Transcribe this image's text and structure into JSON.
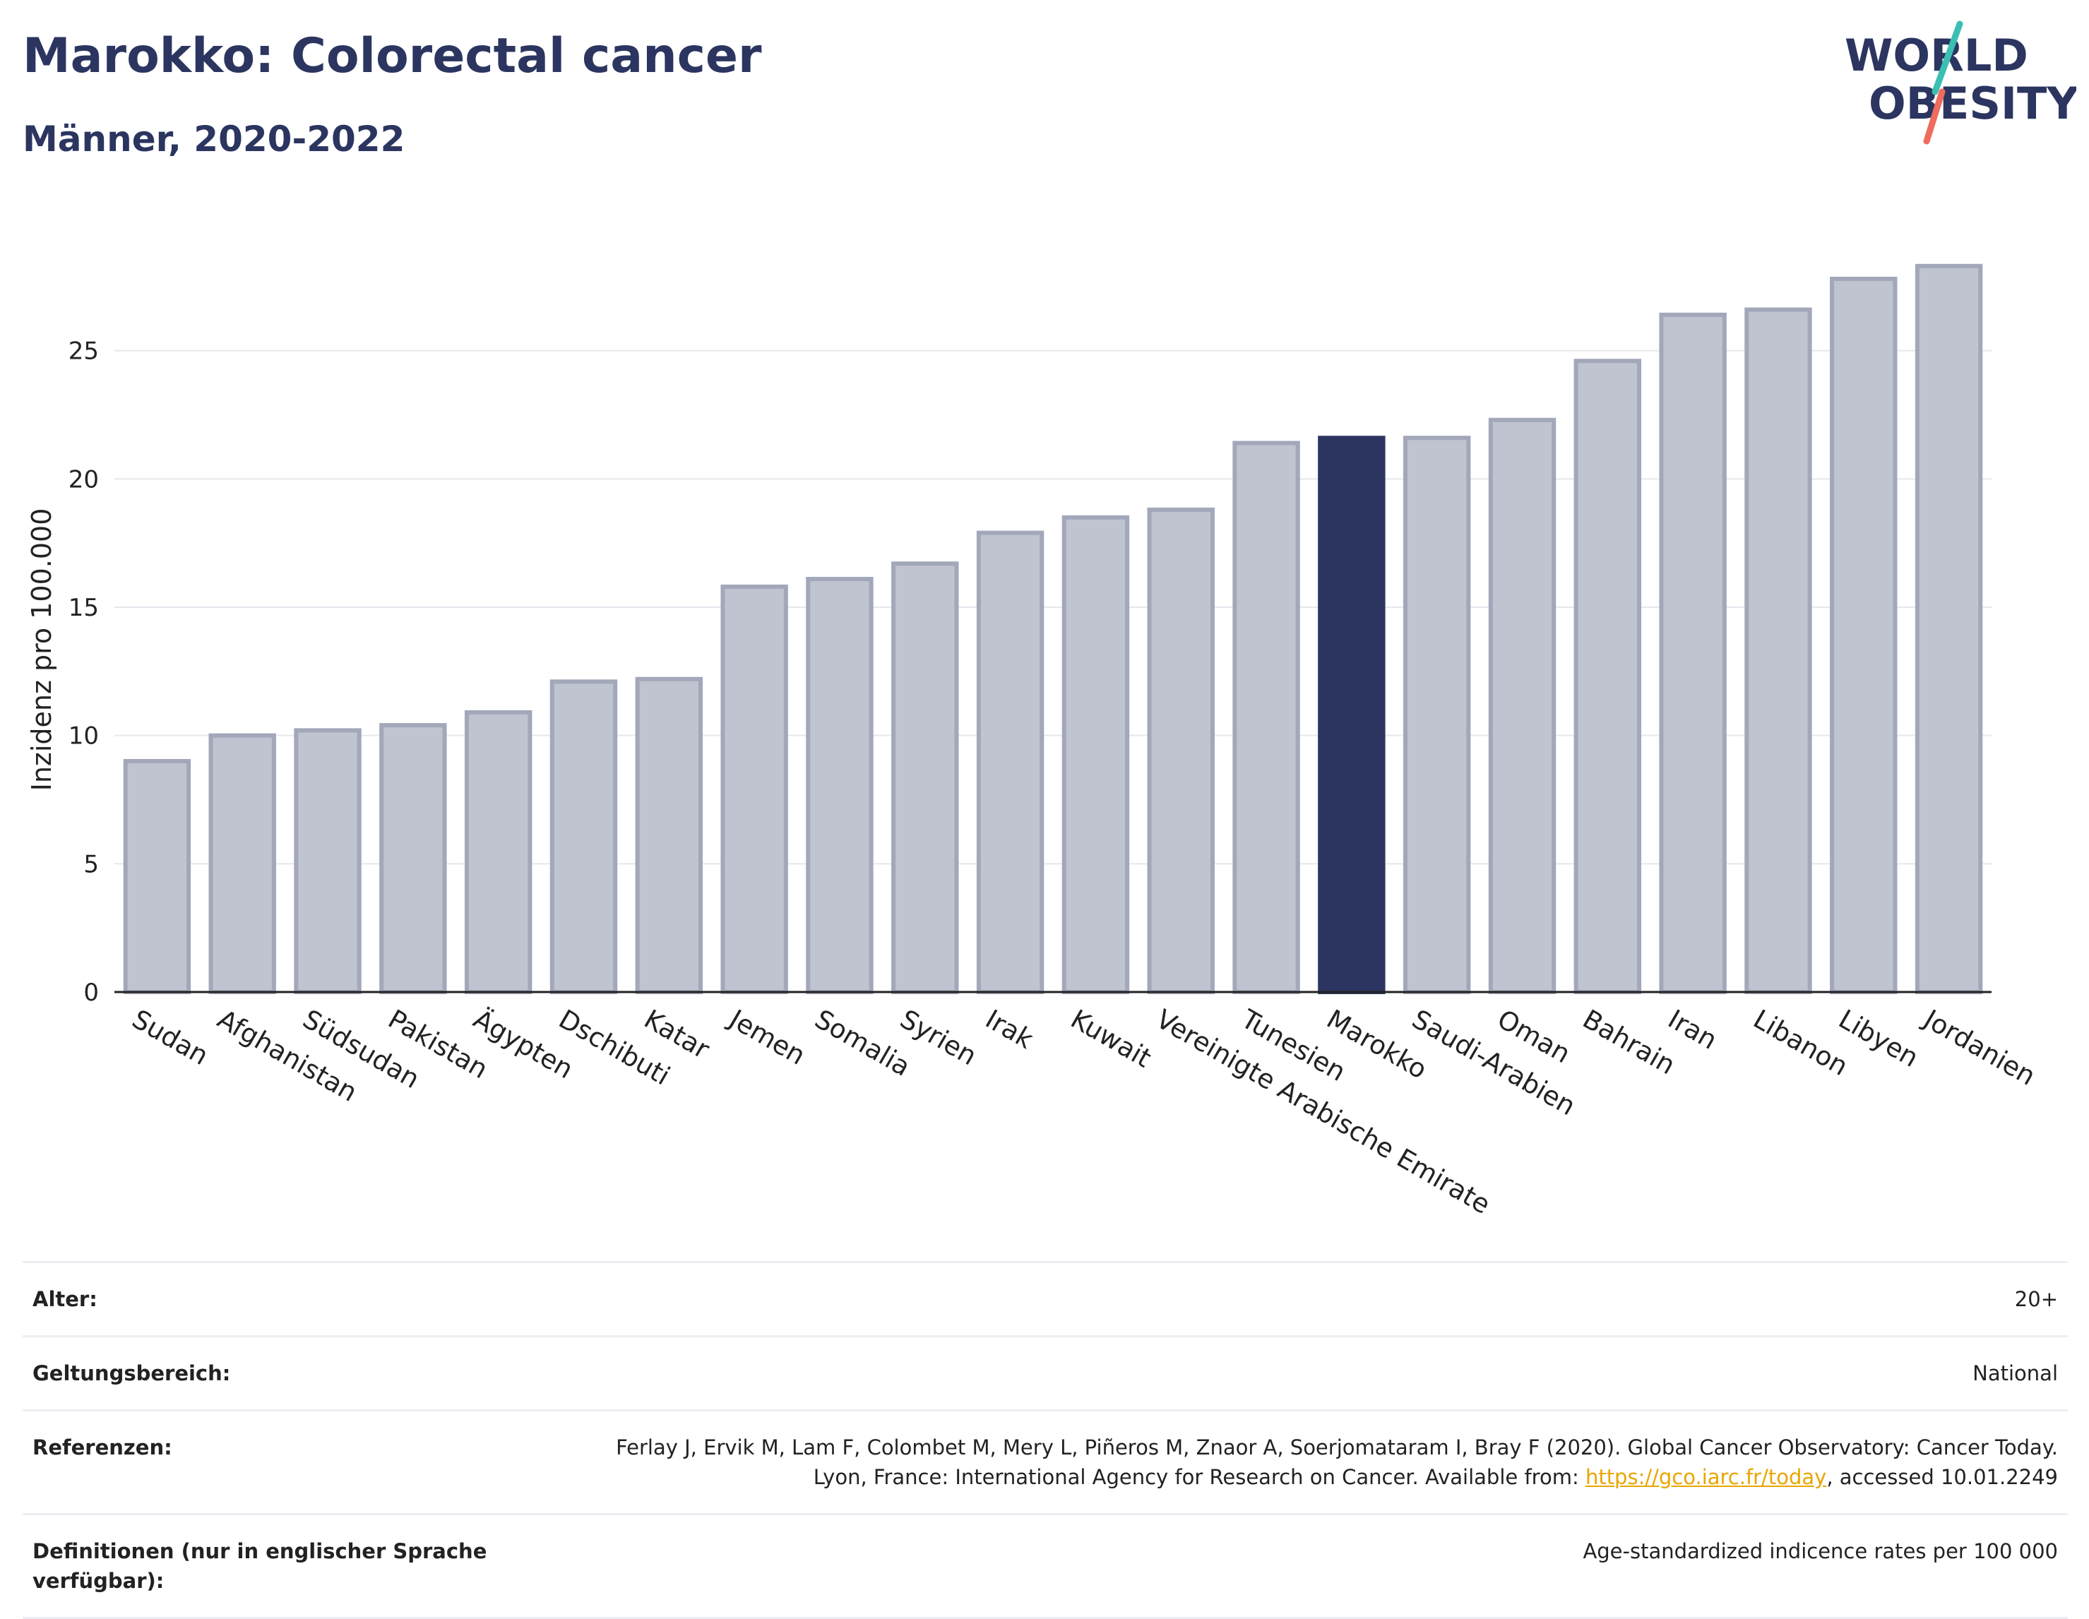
{
  "header": {
    "title": "Marokko: Colorectal cancer",
    "subtitle": "Männer, 2020-2022"
  },
  "logo": {
    "line1": "WORLD",
    "line2": "OBESITY"
  },
  "colors": {
    "highlight": "#2b3560",
    "bar": "#c0c3d0",
    "bar_border": "#a2a7ba",
    "link": "#e8a600"
  },
  "chart_data": {
    "type": "bar",
    "ylabel": "Inzidenz pro 100.000",
    "xlabel": "",
    "ylim": [
      0,
      30
    ],
    "yticks": [
      0,
      5,
      10,
      15,
      20,
      25
    ],
    "grid": true,
    "highlight": "Marokko",
    "categories": [
      "Sudan",
      "Afghanistan",
      "Südsudan",
      "Pakistan",
      "Ägypten",
      "Dschibuti",
      "Katar",
      "Jemen",
      "Somalia",
      "Syrien",
      "Irak",
      "Kuwait",
      "Vereinigte Arabische Emirate",
      "Tunesien",
      "Marokko",
      "Saudi-Arabien",
      "Oman",
      "Bahrain",
      "Iran",
      "Libanon",
      "Libyen",
      "Jordanien"
    ],
    "values": [
      9.0,
      10.0,
      10.2,
      10.4,
      10.9,
      12.1,
      12.2,
      15.8,
      16.1,
      16.7,
      17.9,
      18.5,
      18.8,
      21.4,
      21.6,
      21.6,
      22.3,
      24.6,
      26.4,
      26.6,
      27.8,
      28.3
    ]
  },
  "meta": [
    {
      "label": "Alter:",
      "value": "20+"
    },
    {
      "label": "Geltungsbereich:",
      "value": "National"
    },
    {
      "label": "Referenzen:",
      "value_pre": "Ferlay J, Ervik M, Lam F, Colombet M, Mery L, Piñeros M, Znaor A, Soerjomataram I, Bray F (2020). Global Cancer Observatory: Cancer Today. Lyon, France: International Agency for Research on Cancer. Available from: ",
      "link": "https://gco.iarc.fr/today",
      "value_post": ", accessed 10.01.2249"
    },
    {
      "label": "Definitionen (nur in englischer Sprache verfügbar):",
      "value": "Age-standardized indicence rates per 100 000"
    }
  ]
}
